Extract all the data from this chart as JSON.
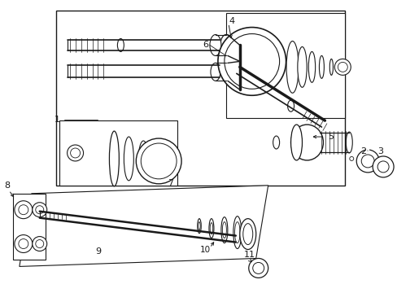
{
  "bg_color": "#ffffff",
  "line_color": "#1a1a1a",
  "fig_width": 4.89,
  "fig_height": 3.6,
  "dpi": 100,
  "gray": "#555555",
  "lgray": "#888888"
}
